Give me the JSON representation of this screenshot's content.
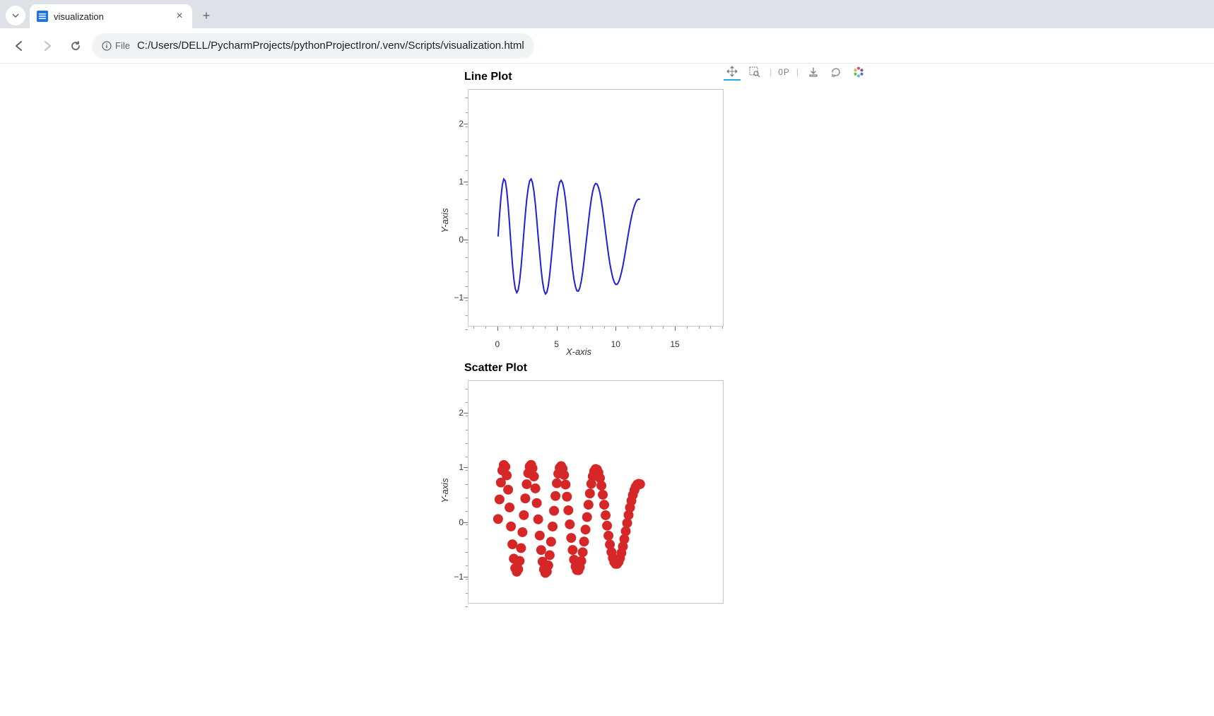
{
  "browser": {
    "tab_title": "visualization",
    "file_chip": "File",
    "url": "C:/Users/DELL/PycharmProjects/pythonProjectIron/.venv/Scripts/visualization.html"
  },
  "toolbar": {
    "hover_label": "0P"
  },
  "line_chart": {
    "type": "line",
    "title": "Line Plot",
    "xlabel": "X-axis",
    "ylabel": "Y-axis",
    "xlim": [
      -2.5,
      19
    ],
    "ylim": [
      -1.55,
      2.55
    ],
    "x_major_ticks": [
      0,
      5,
      10,
      15
    ],
    "y_major_ticks": [
      -1,
      0,
      1,
      2
    ],
    "x_minor_step": 1,
    "y_minor_step": 0.25,
    "line_color": "#1f1fd6",
    "line_width": 2,
    "background_color": "#ffffff",
    "border_color": "#c7c7c7",
    "x": [
      0,
      0.12,
      0.24,
      0.36,
      0.48,
      0.61,
      0.73,
      0.85,
      0.97,
      1.09,
      1.21,
      1.33,
      1.45,
      1.58,
      1.7,
      1.82,
      1.94,
      2.06,
      2.18,
      2.3,
      2.42,
      2.55,
      2.67,
      2.79,
      2.91,
      3.03,
      3.15,
      3.27,
      3.39,
      3.52,
      3.64,
      3.76,
      3.88,
      4,
      4.12,
      4.24,
      4.36,
      4.48,
      4.61,
      4.73,
      4.85,
      4.97,
      5.09,
      5.21,
      5.33,
      5.45,
      5.58,
      5.7,
      5.82,
      5.94,
      6.06,
      6.18,
      6.3,
      6.42,
      6.55,
      6.67,
      6.79,
      6.91,
      7.03,
      7.15,
      7.27,
      7.39,
      7.52,
      7.64,
      7.76,
      7.88,
      8,
      8.12,
      8.24,
      8.36,
      8.48,
      8.61,
      8.73,
      8.85,
      8.97,
      9.09,
      9.21,
      9.33,
      9.45,
      9.58,
      9.7,
      9.82,
      9.94,
      10.06,
      10.18,
      10.3,
      10.42,
      10.55,
      10.67,
      10.79,
      10.91,
      11.03,
      11.15,
      11.27,
      11.39,
      11.52,
      11.64,
      11.76,
      11.88,
      12
    ],
    "y": [
      0,
      0.361,
      0.673,
      0.896,
      0.997,
      0.964,
      0.804,
      0.541,
      0.213,
      -0.137,
      -0.466,
      -0.731,
      -0.905,
      -0.972,
      -0.926,
      -0.773,
      -0.536,
      -0.244,
      0.072,
      0.379,
      0.642,
      0.846,
      0.967,
      0.998,
      0.935,
      0.785,
      0.564,
      0.294,
      -0.006,
      -0.305,
      -0.572,
      -0.785,
      -0.929,
      -0.994,
      -0.968,
      -0.855,
      -0.666,
      -0.419,
      -0.139,
      0.151,
      0.425,
      0.659,
      0.836,
      0.944,
      0.975,
      0.929,
      0.812,
      0.635,
      0.412,
      0.161,
      -0.099,
      -0.349,
      -0.571,
      -0.75,
      -0.876,
      -0.942,
      -0.945,
      -0.887,
      -0.774,
      -0.613,
      -0.416,
      -0.195,
      0.036,
      0.263,
      0.471,
      0.649,
      0.787,
      0.879,
      0.921,
      0.912,
      0.855,
      0.754,
      0.615,
      0.448,
      0.263,
      0.069,
      -0.123,
      -0.306,
      -0.47,
      -0.609,
      -0.718,
      -0.791,
      -0.828,
      -0.827,
      -0.791,
      -0.723,
      -0.626,
      -0.506,
      -0.37,
      -0.224,
      -0.074,
      0.073,
      0.211,
      0.336,
      0.443,
      0.53,
      0.594,
      0.634,
      0.65,
      0.643
    ]
  },
  "scatter_chart": {
    "type": "scatter",
    "title": "Scatter Plot",
    "xlabel": "X-axis",
    "ylabel": "Y-axis",
    "xlim": [
      -2.5,
      19
    ],
    "ylim": [
      -1.55,
      2.55
    ],
    "x_major_ticks": [
      0,
      5,
      10,
      15
    ],
    "y_major_ticks": [
      -1,
      0,
      1,
      2
    ],
    "x_minor_step": 1,
    "y_minor_step": 0.25,
    "marker_color": "#d62728",
    "marker_radius": 7,
    "background_color": "#ffffff",
    "border_color": "#c7c7c7",
    "x": [
      0,
      0.12,
      0.24,
      0.36,
      0.48,
      0.61,
      0.73,
      0.85,
      0.97,
      1.09,
      1.21,
      1.33,
      1.45,
      1.58,
      1.7,
      1.82,
      1.94,
      2.06,
      2.18,
      2.3,
      2.42,
      2.55,
      2.67,
      2.79,
      2.91,
      3.03,
      3.15,
      3.27,
      3.39,
      3.52,
      3.64,
      3.76,
      3.88,
      4,
      4.12,
      4.24,
      4.36,
      4.48,
      4.61,
      4.73,
      4.85,
      4.97,
      5.09,
      5.21,
      5.33,
      5.45,
      5.58,
      5.7,
      5.82,
      5.94,
      6.06,
      6.18,
      6.3,
      6.42,
      6.55,
      6.67,
      6.79,
      6.91,
      7.03,
      7.15,
      7.27,
      7.39,
      7.52,
      7.64,
      7.76,
      7.88,
      8,
      8.12,
      8.24,
      8.36,
      8.48,
      8.61,
      8.73,
      8.85,
      8.97,
      9.09,
      9.21,
      9.33,
      9.45,
      9.58,
      9.7,
      9.82,
      9.94,
      10.06,
      10.18,
      10.3,
      10.42,
      10.55,
      10.67,
      10.79,
      10.91,
      11.03,
      11.15,
      11.27,
      11.39,
      11.52,
      11.64,
      11.76,
      11.88,
      12
    ],
    "y": [
      0,
      0.361,
      0.673,
      0.896,
      0.997,
      0.964,
      0.804,
      0.541,
      0.213,
      -0.137,
      -0.466,
      -0.731,
      -0.905,
      -0.972,
      -0.926,
      -0.773,
      -0.536,
      -0.244,
      0.072,
      0.379,
      0.642,
      0.846,
      0.967,
      0.998,
      0.935,
      0.785,
      0.564,
      0.294,
      -0.006,
      -0.305,
      -0.572,
      -0.785,
      -0.929,
      -0.994,
      -0.968,
      -0.855,
      -0.666,
      -0.419,
      -0.139,
      0.151,
      0.425,
      0.659,
      0.836,
      0.944,
      0.975,
      0.929,
      0.812,
      0.635,
      0.412,
      0.161,
      -0.099,
      -0.349,
      -0.571,
      -0.75,
      -0.876,
      -0.942,
      -0.945,
      -0.887,
      -0.774,
      -0.613,
      -0.416,
      -0.195,
      0.036,
      0.263,
      0.471,
      0.649,
      0.787,
      0.879,
      0.921,
      0.912,
      0.855,
      0.754,
      0.615,
      0.448,
      0.263,
      0.069,
      -0.123,
      -0.306,
      -0.47,
      -0.609,
      -0.718,
      -0.791,
      -0.828,
      -0.827,
      -0.791,
      -0.723,
      -0.626,
      -0.506,
      -0.37,
      -0.224,
      -0.074,
      0.073,
      0.211,
      0.336,
      0.443,
      0.53,
      0.594,
      0.634,
      0.65,
      0.643
    ]
  }
}
